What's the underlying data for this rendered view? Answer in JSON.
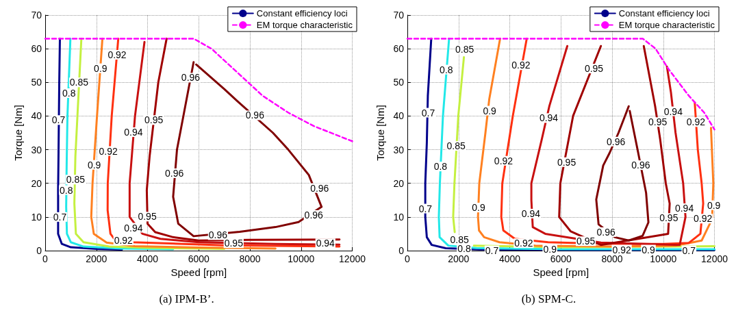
{
  "chart_data": [
    {
      "type": "line",
      "title": "(a) IPM-B’.",
      "xlabel": "Speed [rpm]",
      "ylabel": "Torque [Nm]",
      "xlim": [
        0,
        12000
      ],
      "ylim": [
        0,
        70
      ],
      "xticks": [
        0,
        2000,
        4000,
        6000,
        8000,
        10000,
        12000
      ],
      "yticks": [
        0,
        10,
        20,
        30,
        40,
        50,
        60,
        70
      ],
      "grid": true,
      "legend": "top right",
      "marker": "none",
      "series": [
        {
          "name": "Constant efficiency loci",
          "color": "#00008b",
          "line_style": "solid",
          "x": [
            575,
            550,
            520,
            505,
            505,
            650,
            1000,
            2000,
            3000
          ],
          "values": [
            63,
            50,
            28,
            18,
            5,
            2,
            1,
            0.5,
            0.3
          ]
        },
        {
          "color": "#22e8e8",
          "line_style": "solid",
          "x": [
            985,
            870,
            840,
            820,
            850,
            1000,
            1500,
            3000,
            5000
          ],
          "values": [
            63,
            40,
            26,
            13,
            5,
            2.5,
            1.2,
            0.6,
            0.4
          ]
        },
        {
          "color": "#c4f040",
          "line_style": "solid",
          "x": [
            1414,
            1260,
            1180,
            1140,
            1200,
            1500,
            2500,
            4000,
            7000
          ],
          "values": [
            63,
            40,
            28,
            14,
            5,
            2.5,
            1.2,
            0.8,
            0.5
          ]
        },
        {
          "color": "#ff8020",
          "line_style": "solid",
          "x": [
            2236,
            2025,
            1850,
            1800,
            1900,
            2400,
            3500,
            6000,
            9000
          ],
          "values": [
            63,
            40,
            20,
            10,
            5,
            2.4,
            1.3,
            0.9,
            0.6
          ]
        },
        {
          "color": "#ff3010",
          "line_style": "solid",
          "x": [
            2856,
            2600,
            2445,
            2440,
            2550,
            2700,
            3400,
            7000,
            11500
          ],
          "values": [
            63,
            40,
            20,
            12,
            5,
            3.5,
            2.5,
            1.6,
            1.2
          ]
        },
        {
          "color": "#c81010",
          "line_style": "solid",
          "x": [
            3880,
            3510,
            3300,
            3300,
            3800,
            4500,
            6000,
            9000,
            11500
          ],
          "values": [
            62,
            40,
            20,
            10,
            5,
            3.5,
            2.5,
            2,
            1.8
          ]
        },
        {
          "color": "#a00000",
          "line_style": "solid",
          "x": [
            4745,
            4420,
            4080,
            3970,
            4000,
            4300,
            5000,
            6000,
            8000,
            11500
          ],
          "values": [
            63,
            50,
            28,
            18,
            8,
            5.5,
            4,
            3,
            3.2,
            3.3
          ]
        },
        {
          "color": "#800000",
          "line_style": "solid",
          "x": [
            5800,
            5400,
            5150,
            5000,
            5200,
            5800,
            7600,
            9000,
            9900,
            10800,
            10300,
            9500,
            8900,
            7500,
            7000,
            5900
          ],
          "values": [
            56,
            40,
            30,
            16,
            8,
            4.3,
            5.6,
            7,
            8.5,
            13,
            22.5,
            30,
            35,
            44.5,
            48,
            55.3
          ]
        },
        {
          "name": "EM torque characteristic",
          "color": "#ff00ff",
          "line_style": "dashed",
          "x": [
            0,
            5800,
            6500,
            7500,
            8500,
            9500,
            10500,
            11500,
            12000
          ],
          "values": [
            63,
            63,
            60,
            53,
            46,
            41,
            37,
            34,
            32.5
          ]
        }
      ],
      "annotations": [
        {
          "text": "0.92",
          "x": 2810,
          "y": 58.2
        },
        {
          "text": "0.9",
          "x": 2163,
          "y": 54.2
        },
        {
          "text": "0.85",
          "x": 1323,
          "y": 50
        },
        {
          "text": "0.8",
          "x": 930,
          "y": 46.8
        },
        {
          "text": "0.7",
          "x": 520,
          "y": 38.8
        },
        {
          "text": "0.96",
          "x": 5685,
          "y": 51.4
        },
        {
          "text": "0.96",
          "x": 8195,
          "y": 40.2
        },
        {
          "text": "0.95",
          "x": 4243,
          "y": 38.8
        },
        {
          "text": "0.94",
          "x": 3450,
          "y": 35.2
        },
        {
          "text": "0.92",
          "x": 2464,
          "y": 29.6
        },
        {
          "text": "0.9",
          "x": 1916,
          "y": 25.5
        },
        {
          "text": "0.96",
          "x": 5046,
          "y": 23
        },
        {
          "text": "0.85",
          "x": 1186,
          "y": 21.1
        },
        {
          "text": "0.8",
          "x": 821,
          "y": 18
        },
        {
          "text": "0.96",
          "x": 10722,
          "y": 18.6
        },
        {
          "text": "0.7",
          "x": 575,
          "y": 10
        },
        {
          "text": "0.95",
          "x": 3988,
          "y": 10.1
        },
        {
          "text": "0.96",
          "x": 10494,
          "y": 10.6
        },
        {
          "text": "0.94",
          "x": 3450,
          "y": 6.8
        },
        {
          "text": "0.96",
          "x": 6753,
          "y": 4.6
        },
        {
          "text": "0.92",
          "x": 3057,
          "y": 3
        },
        {
          "text": "0.95",
          "x": 7365,
          "y": 2.2
        },
        {
          "text": "0.94",
          "x": 10950,
          "y": 2.2
        }
      ]
    },
    {
      "type": "line",
      "title": "(b) SPM-C.",
      "xlabel": "Speed [rpm]",
      "ylabel": "Torque [Nm]",
      "xlim": [
        0,
        12000
      ],
      "ylim": [
        0,
        70
      ],
      "xticks": [
        0,
        2000,
        4000,
        6000,
        8000,
        10000,
        12000
      ],
      "yticks": [
        0,
        10,
        20,
        30,
        40,
        50,
        60,
        70
      ],
      "grid": true,
      "legend": "top right",
      "marker": "none",
      "series": [
        {
          "name": "Constant efficiency loci",
          "color": "#00008b",
          "line_style": "solid",
          "x": [
            933,
            800,
            760,
            700,
            700,
            760,
            950,
            1500,
            2800,
            7000,
            12000
          ],
          "values": [
            63,
            46,
            32,
            20,
            10,
            4,
            1.7,
            0.7,
            0.35,
            0.2,
            0.2
          ]
        },
        {
          "color": "#22e8e8",
          "line_style": "solid",
          "x": [
            1630,
            1390,
            1270,
            1230,
            1260,
            1600,
            2700,
            6000,
            12000
          ],
          "values": [
            63,
            40,
            20,
            10,
            4,
            1.5,
            0.75,
            0.4,
            0.4
          ]
        },
        {
          "color": "#c4f040",
          "line_style": "solid",
          "x": [
            2210,
            1990,
            1840,
            1790,
            1850
          ],
          "values": [
            57.5,
            40,
            20,
            10,
            5.5
          ]
        },
        {
          "color": "#c4f040",
          "line_style": "solid",
          "x": [
            2600,
            6000,
            12000
          ],
          "values": [
            1.5,
            1,
            1.3
          ]
        },
        {
          "color": "#ff8020",
          "line_style": "solid",
          "x": [
            3623,
            3200,
            3050,
            2810,
            2760,
            2800,
            3000,
            3600,
            5000,
            8000,
            10500,
            11500,
            11820,
            11910,
            11955,
            11900,
            11864
          ],
          "values": [
            63,
            45,
            35,
            20,
            10,
            6,
            4,
            2.5,
            1.5,
            1.2,
            1.5,
            3,
            8,
            10,
            20,
            30,
            36.5
          ]
        },
        {
          "color": "#ff3010",
          "line_style": "solid",
          "x": [
            4664,
            4120,
            3710,
            3670,
            3750,
            4200,
            5500,
            8000,
            10000,
            11000,
            11450,
            11560,
            11500,
            11350,
            11230
          ],
          "values": [
            63,
            40,
            20,
            10,
            6,
            3.5,
            2.5,
            2,
            2,
            2.3,
            5,
            14,
            20,
            30,
            44
          ]
        },
        {
          "color": "#c81010",
          "line_style": "solid",
          "x": [
            6249,
            5550,
            5250,
            4845,
            4845,
            4900,
            5389,
            7562,
            10642,
            10868,
            10777,
            10480,
            10300,
            10143
          ],
          "values": [
            60.8,
            43,
            33,
            20,
            15,
            7,
            5,
            2.4,
            1.7,
            10,
            20,
            35,
            47,
            54.7
          ]
        },
        {
          "color": "#a00000",
          "line_style": "solid",
          "x": [
            7562,
            6475,
            5977,
            5932,
            6385,
            7562,
            10189,
            10250,
            10098,
            9880,
            9680,
            9238
          ],
          "values": [
            60.8,
            40,
            20,
            10,
            5.7,
            1.7,
            5,
            14,
            20,
            33,
            43,
            60.8
          ]
        },
        {
          "color": "#800000",
          "line_style": "solid",
          "x": [
            8649,
            8250,
            7900,
            7653,
            7381,
            7472,
            8106,
            8649,
            9192,
            9419,
            9328,
            9011,
            8690
          ],
          "values": [
            42.9,
            35,
            29,
            25.3,
            15.2,
            7.8,
            4,
            3,
            4.4,
            8.4,
            17.2,
            29.4,
            41.5
          ]
        },
        {
          "name": "EM torque characteristic",
          "color": "#ff00ff",
          "line_style": "dashed",
          "x": [
            0,
            9200,
            9700,
            10200,
            11000,
            11600,
            12000
          ],
          "values": [
            63,
            63,
            60,
            54,
            46,
            41,
            36
          ]
        }
      ],
      "annotations": [
        {
          "text": "0.85",
          "x": 2237,
          "y": 59.9
        },
        {
          "text": "0.8",
          "x": 1521,
          "y": 53.8
        },
        {
          "text": "0.92",
          "x": 4438,
          "y": 55.1
        },
        {
          "text": "0.95",
          "x": 7291,
          "y": 54.1
        },
        {
          "text": "0.7",
          "x": 815,
          "y": 41
        },
        {
          "text": "0.9",
          "x": 3215,
          "y": 41.6
        },
        {
          "text": "0.94",
          "x": 5525,
          "y": 39.4
        },
        {
          "text": "0.94",
          "x": 10389,
          "y": 41.4
        },
        {
          "text": "0.95",
          "x": 9781,
          "y": 38.2
        },
        {
          "text": "0.92",
          "x": 11275,
          "y": 38.2
        },
        {
          "text": "0.96",
          "x": 8151,
          "y": 32.4
        },
        {
          "text": "0.85",
          "x": 1902,
          "y": 31.1
        },
        {
          "text": "0.8",
          "x": 1295,
          "y": 25
        },
        {
          "text": "0.92",
          "x": 3758,
          "y": 26.7
        },
        {
          "text": "0.95",
          "x": 6222,
          "y": 26.3
        },
        {
          "text": "0.96",
          "x": 9121,
          "y": 25.4
        },
        {
          "text": "0.7",
          "x": 706,
          "y": 12.5
        },
        {
          "text": "0.9",
          "x": 2781,
          "y": 12.8
        },
        {
          "text": "0.94",
          "x": 4827,
          "y": 11
        },
        {
          "text": "0.94",
          "x": 10823,
          "y": 12.6
        },
        {
          "text": "0.9",
          "x": 11977,
          "y": 13.5
        },
        {
          "text": "0.95",
          "x": 10215,
          "y": 9.7
        },
        {
          "text": "0.92",
          "x": 11547,
          "y": 9.5
        },
        {
          "text": "0.96",
          "x": 7762,
          "y": 5.5
        },
        {
          "text": "0.85",
          "x": 2038,
          "y": 3.2
        },
        {
          "text": "0.92",
          "x": 4547,
          "y": 2.2
        },
        {
          "text": "0.95",
          "x": 6974,
          "y": 2.8
        },
        {
          "text": "0.8",
          "x": 2219,
          "y": 0.7
        },
        {
          "text": "0.7",
          "x": 3306,
          "y": 0.1
        },
        {
          "text": "0.9",
          "x": 5570,
          "y": 0.5
        },
        {
          "text": "0.92",
          "x": 8377,
          "y": 0.3
        },
        {
          "text": "0.9",
          "x": 9419,
          "y": 0.3
        },
        {
          "text": "0.7",
          "x": 11004,
          "y": 0.1
        }
      ]
    }
  ]
}
